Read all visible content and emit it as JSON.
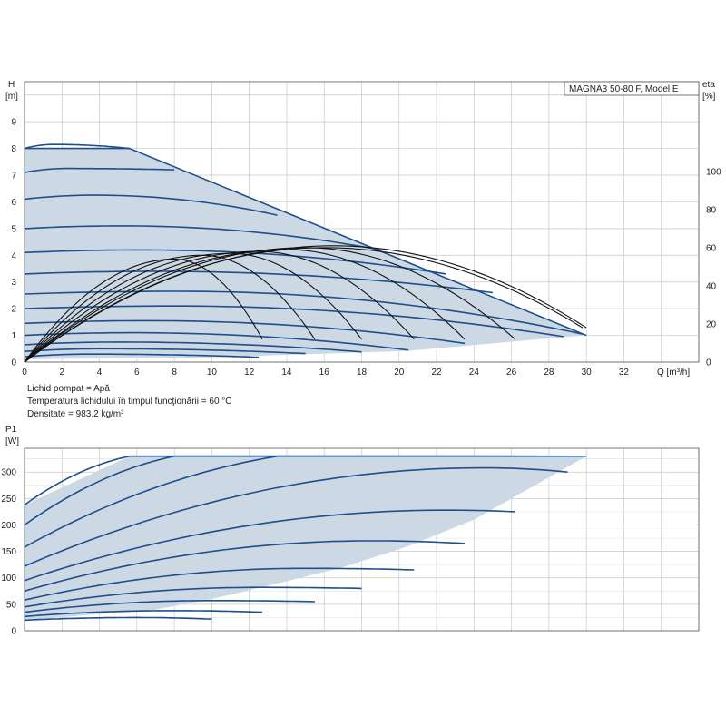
{
  "info_lines": [
    "Lichid pompat = Apă",
    "Temperatura lichidului în timpul funcţionării = 60 °C",
    "Densitate = 983.2 kg/m³"
  ],
  "chart_data": [
    {
      "type": "line",
      "model": "MAGNA3 50-80 F, Model E",
      "ylabel_top": "H",
      "ylabel_unit": "[m]",
      "y2label_top": "eta",
      "y2label_unit": "[%]",
      "xlabel": "Q [m³/h]",
      "xlim": [
        0,
        36
      ],
      "ylim": [
        0,
        10.5
      ],
      "xticks": [
        0,
        2,
        4,
        6,
        8,
        10,
        12,
        14,
        16,
        18,
        20,
        22,
        24,
        26,
        28,
        30,
        32
      ],
      "yticks": [
        0,
        1,
        2,
        3,
        4,
        5,
        6,
        7,
        8,
        9
      ],
      "y2ticks": [
        0,
        20,
        40,
        60,
        80,
        100
      ],
      "y2lim": [
        0,
        147
      ],
      "envelope": [
        [
          0,
          8
        ],
        [
          5.6,
          8
        ],
        [
          30,
          1.0
        ],
        [
          29,
          0.95
        ],
        [
          20.5,
          0.42
        ],
        [
          10,
          0.18
        ],
        [
          0,
          0.1
        ]
      ],
      "head_curves": [
        {
          "h0": 8.0,
          "q_end": 5.6,
          "h_end": 8.0
        },
        {
          "h0": 7.1,
          "q_end": 8.0,
          "h_end": 7.2
        },
        {
          "h0": 6.1,
          "q_end": 13.5,
          "h_end": 5.5
        },
        {
          "h0": 5.0,
          "q_end": 19.0,
          "h_end": 4.2
        },
        {
          "h0": 4.1,
          "q_end": 22.5,
          "h_end": 3.3
        },
        {
          "h0": 3.3,
          "q_end": 25.0,
          "h_end": 2.6
        },
        {
          "h0": 2.55,
          "q_end": 29.8,
          "h_end": 1.05
        },
        {
          "h0": 2.0,
          "q_end": 28.8,
          "h_end": 0.95
        },
        {
          "h0": 1.45,
          "q_end": 23.5,
          "h_end": 0.7
        },
        {
          "h0": 1.0,
          "q_end": 20.5,
          "h_end": 0.45
        },
        {
          "h0": 0.65,
          "q_end": 18.0,
          "h_end": 0.38
        },
        {
          "h0": 0.4,
          "q_end": 15.0,
          "h_end": 0.32
        },
        {
          "h0": 0.2,
          "q_end": 12.5,
          "h_end": 0.18
        }
      ],
      "eff_curves": [
        {
          "q_end": 30.0,
          "peak_q": 16.5,
          "peak": 61
        },
        {
          "q_end": 29.8,
          "peak_q": 16.0,
          "peak": 60
        },
        {
          "q_end": 26.2,
          "peak_q": 15.0,
          "peak": 60
        },
        {
          "q_end": 23.5,
          "peak_q": 14.0,
          "peak": 59
        },
        {
          "q_end": 20.8,
          "peak_q": 12.5,
          "peak": 58
        },
        {
          "q_end": 18.0,
          "peak_q": 11.0,
          "peak": 57
        },
        {
          "q_end": 15.5,
          "peak_q": 9.5,
          "peak": 56
        },
        {
          "q_end": 12.7,
          "peak_q": 8.0,
          "peak": 54
        }
      ]
    },
    {
      "type": "line",
      "ylabel_top": "P1",
      "ylabel_unit": "[W]",
      "xlim": [
        0,
        36
      ],
      "ylim": [
        0,
        345
      ],
      "yticks": [
        0,
        50,
        100,
        150,
        200,
        250,
        300
      ],
      "envelope": [
        [
          0,
          238
        ],
        [
          5.6,
          330
        ],
        [
          30,
          330
        ],
        [
          27,
          270
        ],
        [
          24,
          210
        ],
        [
          20.5,
          160
        ],
        [
          17,
          120
        ],
        [
          13,
          85
        ],
        [
          10,
          60
        ],
        [
          7,
          40
        ],
        [
          0,
          20
        ]
      ],
      "power_curves": [
        {
          "p0": 238,
          "q_end": 5.6,
          "p_end": 330,
          "peak_q": 5.6
        },
        {
          "p0": 200,
          "q_end": 8.0,
          "p_end": 330,
          "peak_q": 8.0
        },
        {
          "p0": 158,
          "q_end": 13.5,
          "p_end": 330,
          "peak_q": 13.5
        },
        {
          "p0": 122,
          "q_end": 29.0,
          "p_end": 300,
          "peak_q": 24.5,
          "peak": 308
        },
        {
          "p0": 95,
          "q_end": 26.2,
          "p_end": 225,
          "peak_q": 22.5,
          "peak": 228
        },
        {
          "p0": 75,
          "q_end": 23.5,
          "p_end": 165,
          "peak_q": 18.5,
          "peak": 170
        },
        {
          "p0": 58,
          "q_end": 20.8,
          "p_end": 115,
          "peak_q": 15.0,
          "peak": 118
        },
        {
          "p0": 45,
          "q_end": 18.0,
          "p_end": 80,
          "peak_q": 12.5,
          "peak": 82
        },
        {
          "p0": 35,
          "q_end": 15.5,
          "p_end": 55,
          "peak_q": 10.0,
          "peak": 57
        },
        {
          "p0": 27,
          "q_end": 12.7,
          "p_end": 35,
          "peak_q": 8.0,
          "peak": 38
        },
        {
          "p0": 20,
          "q_end": 10.0,
          "p_end": 22,
          "peak_q": 6.0,
          "peak": 25
        }
      ]
    }
  ]
}
